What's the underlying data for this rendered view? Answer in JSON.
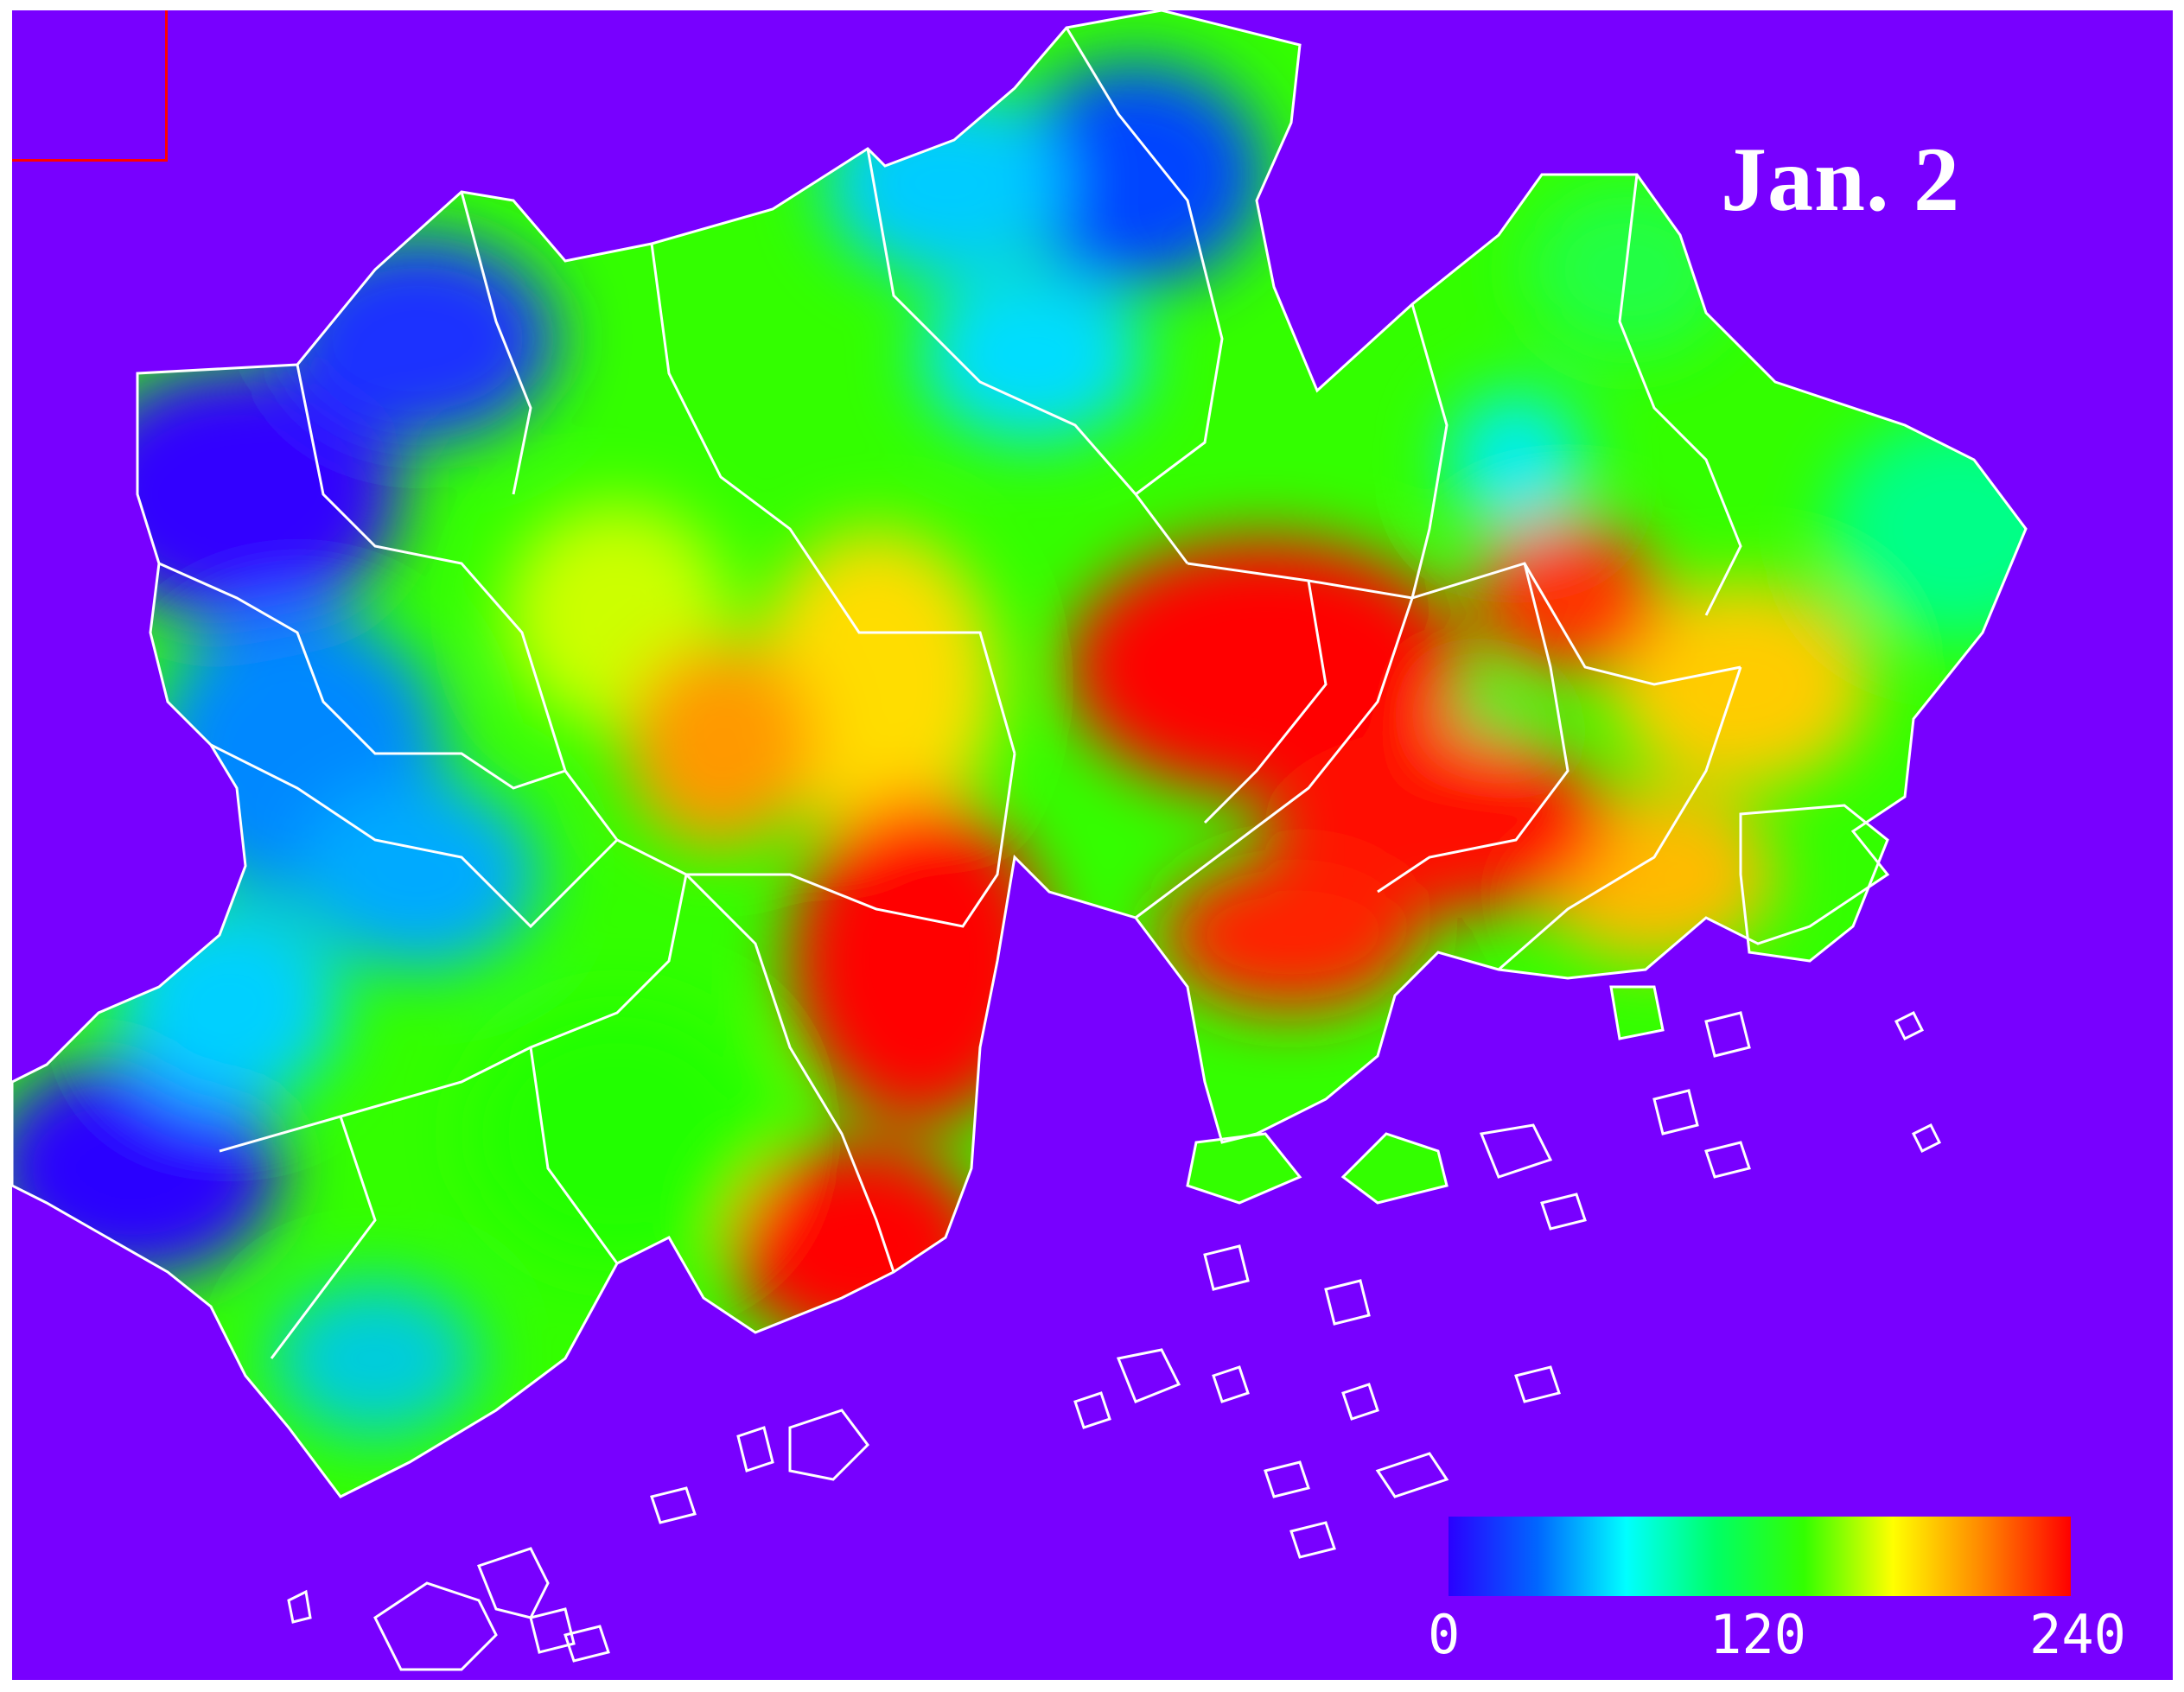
{
  "map": {
    "date_label": "Jan. 2",
    "background_color": "#7800ff",
    "boundary_color": "#ffffff",
    "inset_box_color": "#ff0000",
    "colorbar": {
      "min": 0,
      "max": 240,
      "ticks": [
        "0",
        "120",
        "240"
      ],
      "colormap": [
        "#2a00ff",
        "#0066ff",
        "#00ffff",
        "#00ff66",
        "#33ff00",
        "#ffff00",
        "#ff8800",
        "#ff0000"
      ]
    }
  }
}
